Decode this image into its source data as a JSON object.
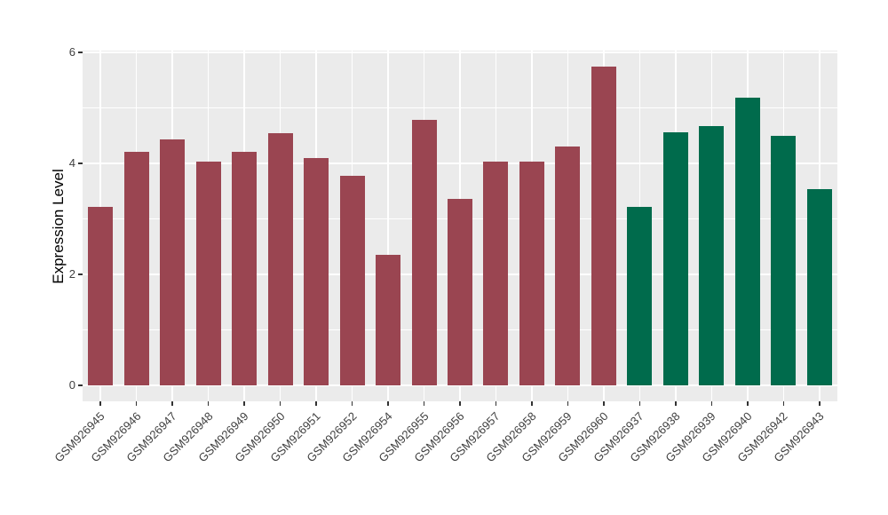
{
  "chart_data": {
    "type": "bar",
    "title": "",
    "xlabel": "",
    "ylabel": "Expression Level",
    "ylim": [
      0,
      6.05
    ],
    "yticks": [
      0,
      2,
      4,
      6
    ],
    "yticks_minor": [
      1,
      3,
      5
    ],
    "grid": "white major+minor horizontal lines and vertical lines at category centers on grey panel",
    "legend": "none",
    "categories": [
      "GSM926945",
      "GSM926946",
      "GSM926947",
      "GSM926948",
      "GSM926949",
      "GSM926950",
      "GSM926951",
      "GSM926952",
      "GSM926954",
      "GSM926955",
      "GSM926956",
      "GSM926957",
      "GSM926958",
      "GSM926959",
      "GSM926960",
      "GSM926937",
      "GSM926938",
      "GSM926939",
      "GSM926940",
      "GSM926942",
      "GSM926943"
    ],
    "values": [
      3.22,
      4.21,
      4.44,
      4.03,
      4.21,
      4.54,
      4.1,
      3.77,
      2.36,
      4.78,
      3.36,
      4.03,
      4.03,
      4.3,
      5.75,
      3.22,
      4.56,
      4.67,
      5.18,
      4.5,
      3.53
    ],
    "groups": [
      "maroon",
      "maroon",
      "maroon",
      "maroon",
      "maroon",
      "maroon",
      "maroon",
      "maroon",
      "maroon",
      "maroon",
      "maroon",
      "maroon",
      "maroon",
      "maroon",
      "maroon",
      "green",
      "green",
      "green",
      "green",
      "green",
      "green"
    ]
  },
  "style": {
    "group_colors": {
      "maroon": "#9A4551",
      "green": "#006B4C"
    },
    "panel_background": "#EBEBEB",
    "gridline_color": "#FFFFFF",
    "tick_mark_color": "#333333",
    "axis_text_color": "#404040",
    "axis_title_color": "#000000",
    "page_background": "#FFFFFF"
  }
}
